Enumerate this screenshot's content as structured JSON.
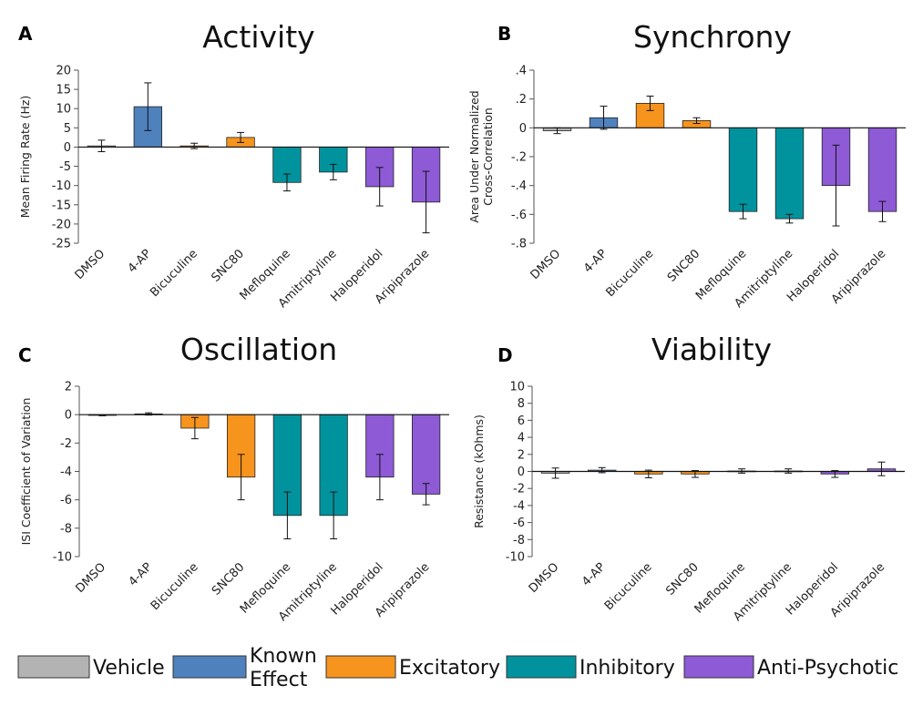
{
  "categories": [
    "DMSO",
    "4-AP",
    "Bicuculine",
    "SNC80",
    "Mefloquine",
    "Amitriptyline",
    "Haloperidol",
    "Aripiprazole"
  ],
  "bar_groups": [
    "vehicle",
    "known",
    "excitatory",
    "excitatory",
    "inhibitory",
    "inhibitory",
    "antipsychotic",
    "antipsychotic"
  ],
  "colors": {
    "vehicle": "#b3b3b3",
    "known": "#4f81bd",
    "excitatory": "#f7941d",
    "inhibitory": "#00939e",
    "antipsychotic": "#8e5ad6"
  },
  "legend": [
    {
      "key": "vehicle",
      "label": "Vehicle"
    },
    {
      "key": "known",
      "label": "Known Effect"
    },
    {
      "key": "excitatory",
      "label": "Excitatory"
    },
    {
      "key": "inhibitory",
      "label": "Inhibitory"
    },
    {
      "key": "antipsychotic",
      "label": "Anti-Psychotic"
    }
  ],
  "chart_data": [
    {
      "type": "bar",
      "letter": "A",
      "title": "Activity",
      "ylabel": "Mean Firing Rate (Hz)",
      "ylim": [
        -25,
        20
      ],
      "ytick_step": 5,
      "categories": [
        "DMSO",
        "4-AP",
        "Bicuculine",
        "SNC80",
        "Mefloquine",
        "Amitriptyline",
        "Haloperidol",
        "Aripiprazole"
      ],
      "values": [
        0.3,
        10.5,
        0.3,
        2.5,
        -9.2,
        -6.5,
        -10.3,
        -14.3
      ],
      "errors": [
        1.5,
        6.2,
        0.7,
        1.3,
        2.2,
        2.0,
        5.0,
        8.0
      ]
    },
    {
      "type": "bar",
      "letter": "B",
      "title": "Synchrony",
      "ylabel": "Area Under Normalized Cross-Correlation",
      "ylim": [
        -0.8,
        0.4
      ],
      "ytick_step": 0.2,
      "categories": [
        "DMSO",
        "4-AP",
        "Bicuculine",
        "SNC80",
        "Mefloquine",
        "Amitriptyline",
        "Haloperidol",
        "Aripiprazole"
      ],
      "values": [
        -0.02,
        0.07,
        0.17,
        0.05,
        -0.58,
        -0.63,
        -0.4,
        -0.58
      ],
      "errors": [
        0.02,
        0.08,
        0.05,
        0.02,
        0.05,
        0.03,
        0.28,
        0.07
      ]
    },
    {
      "type": "bar",
      "letter": "C",
      "title": "Oscillation",
      "ylabel": "ISI Coefficient of Variation",
      "ylim": [
        -10,
        2
      ],
      "ytick_step": 2,
      "categories": [
        "DMSO",
        "4-AP",
        "Bicuculine",
        "SNC80",
        "Mefloquine",
        "Amitriptyline",
        "Haloperidol",
        "Aripiprazole"
      ],
      "values": [
        -0.05,
        0.05,
        -0.95,
        -4.4,
        -7.1,
        -7.1,
        -4.4,
        -5.6
      ],
      "errors": [
        0.03,
        0.08,
        0.75,
        1.6,
        1.65,
        1.65,
        1.6,
        0.75
      ]
    },
    {
      "type": "bar",
      "letter": "D",
      "title": "Viability",
      "ylabel": "Resistance  (kOhms)",
      "ylim": [
        -10,
        10
      ],
      "ytick_step": 2,
      "categories": [
        "DMSO",
        "4-AP",
        "Bicuculine",
        "SNC80",
        "Mefloquine",
        "Amitriptyline",
        "Haloperidol",
        "Aripiprazole"
      ],
      "values": [
        -0.2,
        0.15,
        -0.3,
        -0.3,
        0.05,
        0.05,
        -0.3,
        0.3
      ],
      "errors": [
        0.6,
        0.3,
        0.45,
        0.4,
        0.25,
        0.25,
        0.4,
        0.8
      ]
    }
  ]
}
